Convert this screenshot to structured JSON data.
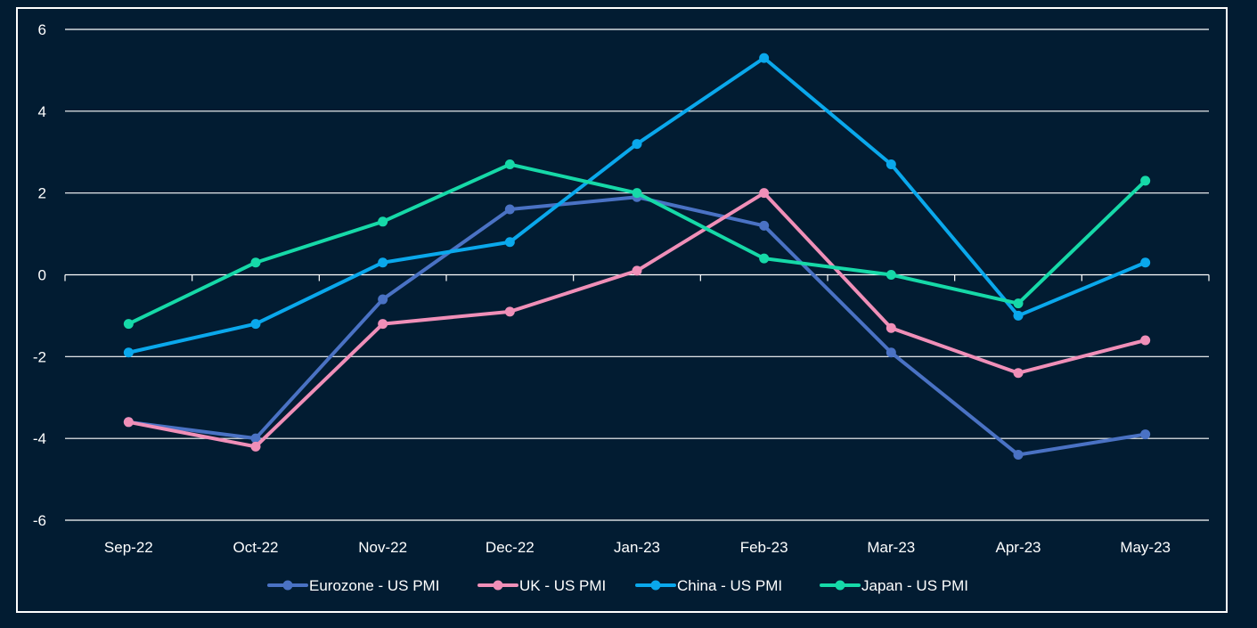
{
  "chart_data": {
    "type": "line",
    "title": "",
    "xlabel": "",
    "ylabel": "",
    "categories": [
      "Sep-22",
      "Oct-22",
      "Nov-22",
      "Dec-22",
      "Jan-23",
      "Feb-23",
      "Mar-23",
      "Apr-23",
      "May-23"
    ],
    "ylim": [
      -6,
      6
    ],
    "yticks": [
      6,
      4,
      2,
      0,
      -2,
      -4,
      -6
    ],
    "ytick_labels": [
      "6",
      "4",
      "2",
      "0",
      "-2",
      "-4",
      "-6"
    ],
    "grid": true,
    "legend_position": "bottom",
    "series": [
      {
        "name": "Eurozone - US PMI",
        "color": "#4a72c4",
        "values": [
          -3.6,
          -4.0,
          -0.6,
          1.6,
          1.9,
          1.2,
          -1.9,
          -4.4,
          -3.9
        ]
      },
      {
        "name": "UK - US PMI",
        "color": "#f08fb8",
        "values": [
          -3.6,
          -4.2,
          -1.2,
          -0.9,
          0.1,
          2.0,
          -1.3,
          -2.4,
          -1.6
        ]
      },
      {
        "name": "China - US PMI",
        "color": "#0aa8ec",
        "values": [
          -1.9,
          -1.2,
          0.3,
          0.8,
          3.2,
          5.3,
          2.7,
          -1.0,
          0.3
        ]
      },
      {
        "name": "Japan - US PMI",
        "color": "#16d9a8",
        "values": [
          -1.2,
          0.3,
          1.3,
          2.7,
          2.0,
          0.4,
          0.0,
          -0.7,
          2.3
        ]
      }
    ]
  }
}
